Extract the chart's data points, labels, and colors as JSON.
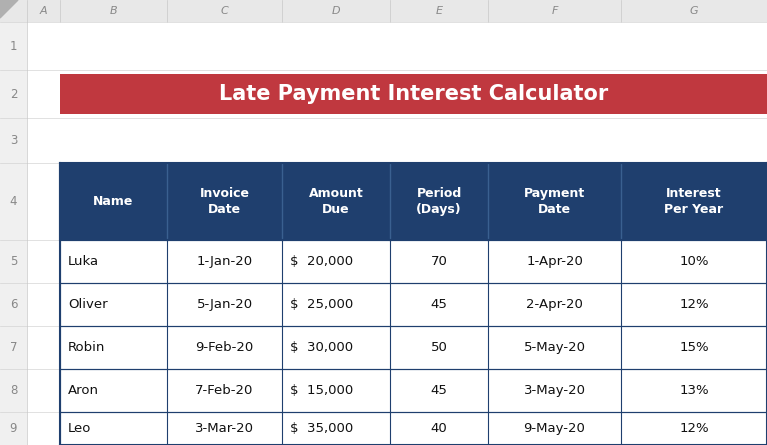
{
  "title": "Late Payment Interest Calculator",
  "title_bg": "#C0383F",
  "title_color": "#FFFFFF",
  "header_bg": "#1F3F6E",
  "header_color": "#FFFFFF",
  "cell_bg": "#FFFFFF",
  "border_color": "#1F3F6E",
  "excel_bg": "#F2F2F2",
  "col_header_bg": "#E8E8E8",
  "row_num_bg": "#F0F0F0",
  "col_header_color": "#888888",
  "row_num_color": "#888888",
  "figsize": [
    7.67,
    4.45
  ],
  "dpi": 100,
  "col_letters": [
    "A",
    "B",
    "C",
    "D",
    "E",
    "F",
    "G"
  ],
  "headers": [
    "Name",
    "Invoice\nDate",
    "Amount\nDue",
    "Period\n(Days)",
    "Payment\nDate",
    "Interest\nPer Year"
  ],
  "rows": [
    [
      "Luka",
      "1-Jan-20",
      "$  20,000",
      "70",
      "1-Apr-20",
      "10%"
    ],
    [
      "Oliver",
      "5-Jan-20",
      "$  25,000",
      "45",
      "2-Apr-20",
      "12%"
    ],
    [
      "Robin",
      "9-Feb-20",
      "$  30,000",
      "50",
      "5-May-20",
      "15%"
    ],
    [
      "Aron",
      "7-Feb-20",
      "$  15,000",
      "45",
      "3-May-20",
      "13%"
    ],
    [
      "Leo",
      "3-Mar-20",
      "$  35,000",
      "40",
      "9-May-20",
      "12%"
    ]
  ],
  "col_aligns": [
    "left",
    "center",
    "left",
    "center",
    "center",
    "center"
  ],
  "triangle_color": "#B0B0B0"
}
